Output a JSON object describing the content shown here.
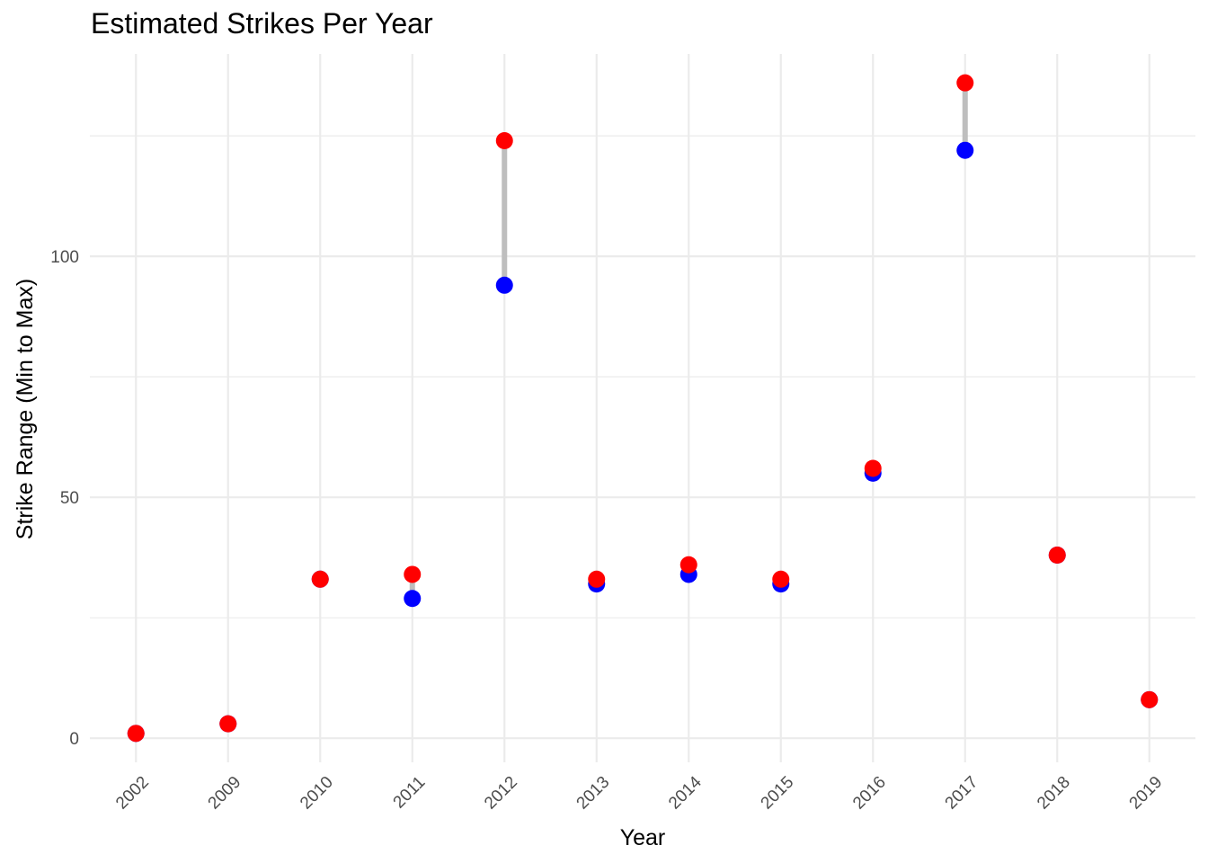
{
  "chart_data": {
    "type": "scatter",
    "title": "Estimated Strikes Per Year",
    "xlabel": "Year",
    "ylabel": "Strike Range (Min to Max)",
    "categories": [
      "2002",
      "2009",
      "2010",
      "2011",
      "2012",
      "2013",
      "2014",
      "2015",
      "2016",
      "2017",
      "2018",
      "2019"
    ],
    "series": [
      {
        "values": [
          1,
          3,
          33,
          29,
          94,
          32,
          34,
          32,
          55,
          122,
          38,
          8
        ],
        "color": "#0000ff"
      },
      {
        "values": [
          1,
          3,
          33,
          34,
          124,
          33,
          36,
          33,
          56,
          136,
          38,
          8
        ],
        "color": "#ff0000"
      }
    ],
    "y_ticks": [
      0,
      50,
      100
    ],
    "ylim": [
      -5,
      142
    ],
    "segment_color": "#bebebe",
    "grid": true,
    "legend": "none"
  }
}
